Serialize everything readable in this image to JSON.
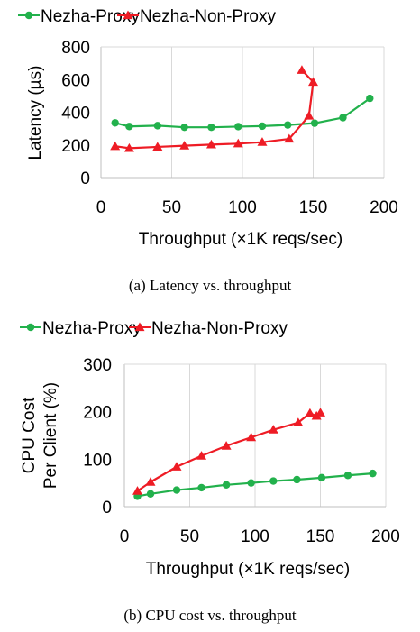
{
  "chart_data": [
    {
      "type": "line",
      "caption": "(a) Latency vs. throughput",
      "xlabel": "Throughput (×1K reqs/sec)",
      "ylabel": "Latency (µs)",
      "xlim": [
        0,
        200
      ],
      "ylim": [
        0,
        800
      ],
      "xticks": [
        "0",
        "50",
        "100",
        "150",
        "200"
      ],
      "yticks": [
        "0",
        "200",
        "400",
        "600",
        "800"
      ],
      "grid": "vertical",
      "legend": "top",
      "series": [
        {
          "name": "Nezha-Proxy",
          "color": "#22b14c",
          "marker": "circle",
          "x": [
            10,
            20,
            40,
            59,
            78,
            97,
            114,
            132,
            151,
            171,
            190
          ],
          "y": [
            335,
            313,
            318,
            308,
            308,
            312,
            315,
            322,
            333,
            367,
            485
          ]
        },
        {
          "name": "Nezha-Non-Proxy",
          "color": "#ee1c25",
          "marker": "triangle",
          "x": [
            10,
            20,
            40,
            59,
            78,
            97,
            114,
            133,
            147,
            150,
            142
          ],
          "y": [
            192,
            180,
            188,
            195,
            202,
            208,
            217,
            237,
            378,
            585,
            658
          ]
        }
      ]
    },
    {
      "type": "line",
      "caption": "(b) CPU cost vs. throughput",
      "xlabel": "Throughput (×1K reqs/sec)",
      "ylabel": [
        "CPU Cost",
        "Per Client (%)"
      ],
      "xlim": [
        0,
        200
      ],
      "ylim": [
        0,
        300
      ],
      "xticks": [
        "0",
        "50",
        "100",
        "150",
        "200"
      ],
      "yticks": [
        "0",
        "100",
        "200",
        "300"
      ],
      "grid": "vertical",
      "legend": "top",
      "series": [
        {
          "name": "Nezha-Proxy",
          "color": "#22b14c",
          "marker": "circle",
          "x": [
            10,
            20,
            40,
            59,
            78,
            97,
            114,
            132,
            151,
            171,
            190
          ],
          "y": [
            22,
            27,
            35,
            40,
            46,
            50,
            54,
            57,
            61,
            66,
            70
          ]
        },
        {
          "name": "Nezha-Non-Proxy",
          "color": "#ee1c25",
          "marker": "triangle",
          "x": [
            10,
            20,
            40,
            59,
            78,
            97,
            114,
            133,
            142,
            147,
            150
          ],
          "y": [
            33,
            52,
            84,
            107,
            128,
            146,
            162,
            177,
            197,
            191,
            198
          ]
        }
      ]
    }
  ]
}
